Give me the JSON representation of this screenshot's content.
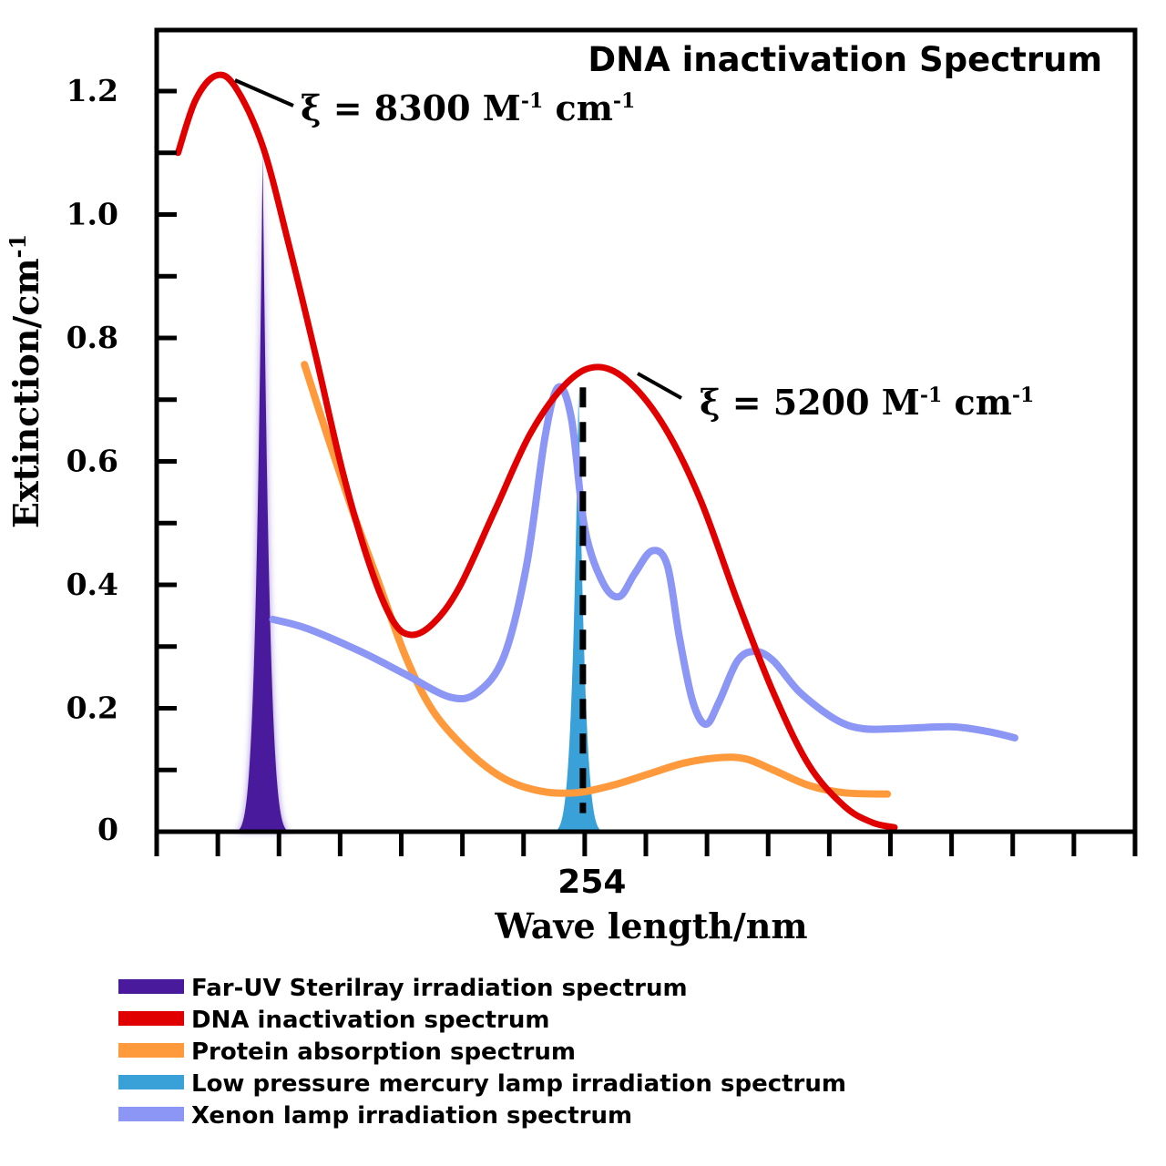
{
  "chart_data": {
    "type": "line",
    "title": "DNA inactivation Spectrum",
    "xlabel": "Wave length/nm",
    "ylabel": "Extinction/cm",
    "ylabel_sup": "-1",
    "xlim": [
      212,
      308
    ],
    "ylim": [
      0,
      1.2
    ],
    "x_tick_step": 6,
    "x_tick_labels": [
      {
        "value": 254,
        "label": "254"
      }
    ],
    "y_ticks": [
      {
        "value": 0,
        "label": "0"
      },
      {
        "value": 0.2,
        "label": "0.2"
      },
      {
        "value": 0.4,
        "label": "0.4"
      },
      {
        "value": 0.6,
        "label": "0.6"
      },
      {
        "value": 0.8,
        "label": "0.8"
      },
      {
        "value": 1.0,
        "label": "1.0"
      },
      {
        "value": 1.2,
        "label": "1.2"
      }
    ],
    "y_minor_step": 0.1,
    "grid": false,
    "legend_position": "bottom-left",
    "series": [
      {
        "name": "Far-UV Sterilray irradiation spectrum",
        "kind": "peak",
        "color": "#4a1a9c",
        "center": 222.4,
        "height": 1.1,
        "half_base_nm": 3.2
      },
      {
        "name": "DNA inactivation spectrum",
        "kind": "line",
        "color": "#e00000",
        "x": [
          214.1,
          215.8,
          217.8,
          219.7,
          222.4,
          225.0,
          227.6,
          230.3,
          232.9,
          235.1,
          236.9,
          239.1,
          241.7,
          245.2,
          248.7,
          252.3,
          255.3,
          258.4,
          261.9,
          265.4,
          269.0,
          272.5,
          276.0,
          279.5,
          282.2,
          284.4
        ],
        "y": [
          1.1,
          1.185,
          1.225,
          1.207,
          1.111,
          0.949,
          0.772,
          0.58,
          0.432,
          0.344,
          0.319,
          0.337,
          0.396,
          0.521,
          0.646,
          0.728,
          0.753,
          0.728,
          0.654,
          0.536,
          0.373,
          0.226,
          0.108,
          0.041,
          0.015,
          0.007
        ]
      },
      {
        "name": "Protein absorption spectrum",
        "kind": "line",
        "color": "#ff9a3c",
        "x": [
          226.5,
          228.5,
          231.2,
          233.8,
          236.4,
          239.1,
          242.6,
          246.1,
          249.6,
          253.1,
          256.7,
          260.2,
          263.7,
          267.2,
          269.8,
          272.5,
          276.0,
          279.5,
          283.7
        ],
        "y": [
          0.757,
          0.654,
          0.521,
          0.403,
          0.285,
          0.196,
          0.13,
          0.086,
          0.066,
          0.063,
          0.075,
          0.093,
          0.111,
          0.12,
          0.118,
          0.1,
          0.075,
          0.063,
          0.061
        ]
      },
      {
        "name": "Low pressure mercury lamp irradiation spectrum",
        "kind": "peak",
        "color": "#3aa0d8",
        "center": 253.4,
        "height": 0.72,
        "half_base_nm": 3.0
      },
      {
        "name": "Xenon lamp irradiation spectrum",
        "kind": "line",
        "color": "#8c96f5",
        "x": [
          223.4,
          226.8,
          232.0,
          236.4,
          240.8,
          243.5,
          246.1,
          248.3,
          250.1,
          251.4,
          252.7,
          254.0,
          255.8,
          257.4,
          258.9,
          260.6,
          262.1,
          263.3,
          264.6,
          265.9,
          267.2,
          269.0,
          270.7,
          272.5,
          275.1,
          278.6,
          281.3,
          284.8,
          290.1,
          293.6,
          296.2
        ],
        "y": [
          0.344,
          0.329,
          0.292,
          0.255,
          0.218,
          0.226,
          0.285,
          0.432,
          0.639,
          0.72,
          0.669,
          0.492,
          0.403,
          0.381,
          0.418,
          0.455,
          0.432,
          0.314,
          0.211,
          0.174,
          0.211,
          0.277,
          0.292,
          0.277,
          0.226,
          0.182,
          0.167,
          0.167,
          0.17,
          0.162,
          0.152
        ]
      }
    ],
    "reference_line": {
      "x": 254,
      "y_from": 0.03,
      "y_to": 0.72,
      "style": "dashed"
    },
    "annotations": [
      {
        "prefix": "ξ = 8300 M",
        "sup1": "-1",
        "mid": " cm",
        "sup2": "-1",
        "at_x": 218.5,
        "at_y": 1.215
      },
      {
        "prefix": "ξ = 5200 M",
        "sup1": "-1",
        "mid": " cm",
        "sup2": "-1",
        "at_x": 258.5,
        "at_y": 0.745
      }
    ]
  }
}
